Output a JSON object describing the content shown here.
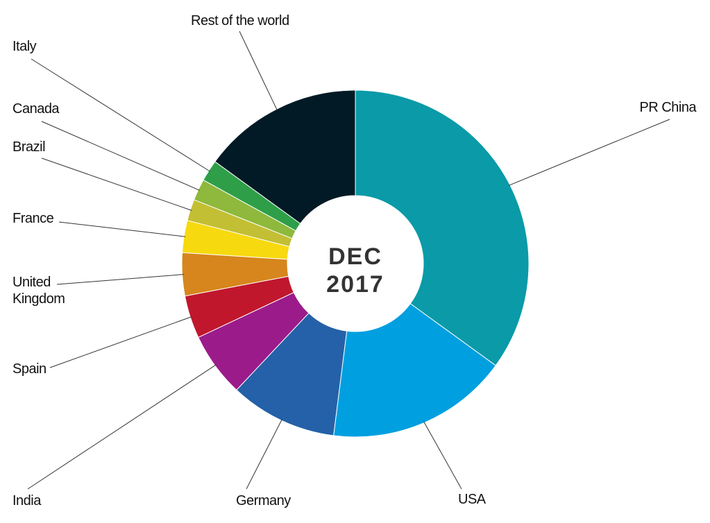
{
  "chart_data": {
    "type": "pie",
    "center_text": [
      "DEC",
      "2017"
    ],
    "categories": [
      "PR China",
      "USA",
      "Germany",
      "India",
      "Spain",
      "United Kingdom",
      "France",
      "Brazil",
      "Canada",
      "Italy",
      "Rest of the world"
    ],
    "values": [
      35,
      17,
      10,
      6,
      4,
      4,
      3,
      2,
      2,
      2,
      15
    ],
    "colors": [
      "#0a9aa8",
      "#009fe0",
      "#2461a8",
      "#9b1b8a",
      "#c0172d",
      "#d6861c",
      "#f7d90f",
      "#c3bf34",
      "#8eb93c",
      "#2e9f48",
      "#021a25"
    ]
  }
}
